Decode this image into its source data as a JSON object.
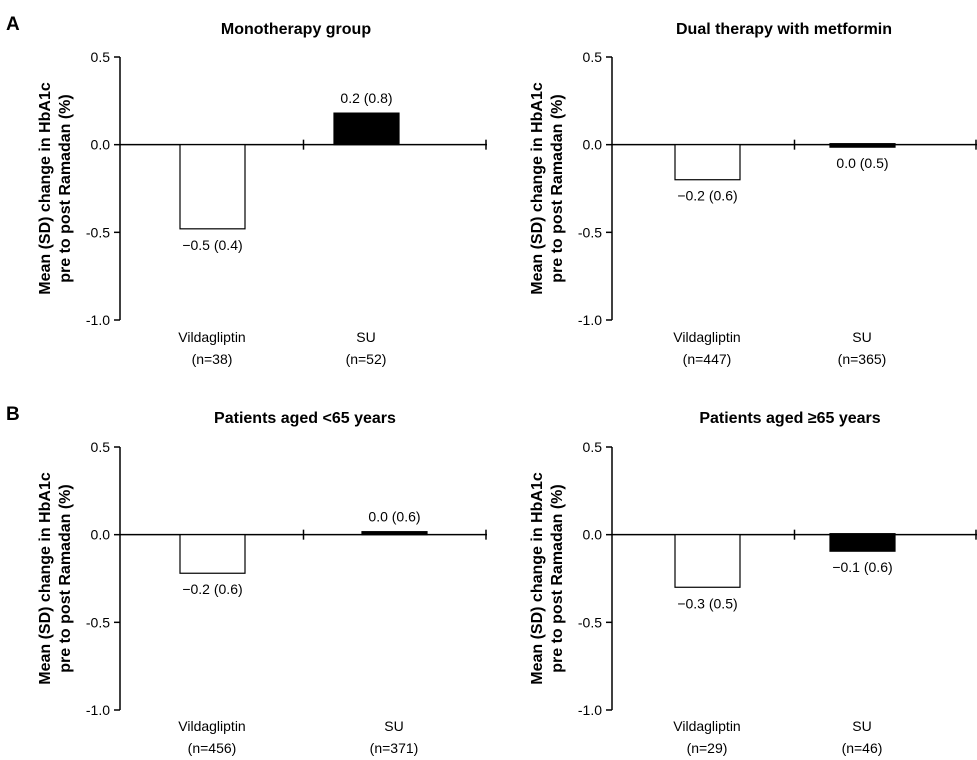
{
  "panel_letters": [
    "A",
    "B"
  ],
  "chart_data": [
    {
      "type": "bar",
      "panel": "A",
      "title": "Monotherapy group",
      "ylabel_lines": [
        "Mean (SD) change in HbA1c",
        "pre to post Ramadan (%)"
      ],
      "ylim": [
        -1.0,
        0.5
      ],
      "yticks": [
        0.5,
        0.0,
        -0.5,
        -1.0
      ],
      "ytick_labels": [
        "0.5",
        "0.0",
        "-0.5",
        "-1.0"
      ],
      "categories": [
        {
          "name": "Vildagliptin",
          "n": "(n=38)"
        },
        {
          "name": "SU",
          "n": "(n=52)"
        }
      ],
      "values": [
        -0.48,
        0.18
      ],
      "value_labels": [
        "−0.5 (0.4)",
        "0.2 (0.8)"
      ],
      "fills": [
        "#ffffff",
        "#000000"
      ]
    },
    {
      "type": "bar",
      "panel": "A",
      "title": "Dual therapy with metformin",
      "ylabel_lines": [
        "Mean (SD) change in HbA1c",
        "pre to post Ramadan (%)"
      ],
      "ylim": [
        -1.0,
        0.5
      ],
      "yticks": [
        0.5,
        0.0,
        -0.5,
        -1.0
      ],
      "ytick_labels": [
        "0.5",
        "0.0",
        "-0.5",
        "-1.0"
      ],
      "categories": [
        {
          "name": "Vildagliptin",
          "n": "(n=447)"
        },
        {
          "name": "SU",
          "n": "(n=365)"
        }
      ],
      "values": [
        -0.2,
        -0.02
      ],
      "value_labels": [
        "−0.2 (0.6)",
        "0.0 (0.5)"
      ],
      "fills": [
        "#ffffff",
        "#000000"
      ]
    },
    {
      "type": "bar",
      "panel": "B",
      "title": "Patients aged <65 years",
      "ylabel_lines": [
        "Mean (SD) change in HbA1c",
        "pre to post Ramadan (%)"
      ],
      "ylim": [
        -1.0,
        0.5
      ],
      "yticks": [
        0.5,
        0.0,
        -0.5,
        -1.0
      ],
      "ytick_labels": [
        "0.5",
        "0.0",
        "-0.5",
        "-1.0"
      ],
      "categories": [
        {
          "name": "Vildagliptin",
          "n": "(n=456)"
        },
        {
          "name": "SU",
          "n": "(n=371)"
        }
      ],
      "values": [
        -0.22,
        0.01
      ],
      "value_labels": [
        "−0.2 (0.6)",
        "0.0 (0.6)"
      ],
      "fills": [
        "#ffffff",
        "#000000"
      ]
    },
    {
      "type": "bar",
      "panel": "B",
      "title": "Patients aged ≥65 years",
      "ylabel_lines": [
        "Mean (SD) change in HbA1c",
        "pre to post Ramadan (%)"
      ],
      "ylim": [
        -1.0,
        0.5
      ],
      "yticks": [
        0.5,
        0.0,
        -0.5,
        -1.0
      ],
      "ytick_labels": [
        "0.5",
        "0.0",
        "-0.5",
        "-1.0"
      ],
      "categories": [
        {
          "name": "Vildagliptin",
          "n": "(n=29)"
        },
        {
          "name": "SU",
          "n": "(n=46)"
        }
      ],
      "values": [
        -0.3,
        -0.1
      ],
      "value_labels": [
        "−0.3 (0.5)",
        "−0.1 (0.6)"
      ],
      "fills": [
        "#ffffff",
        "#000000"
      ]
    }
  ]
}
